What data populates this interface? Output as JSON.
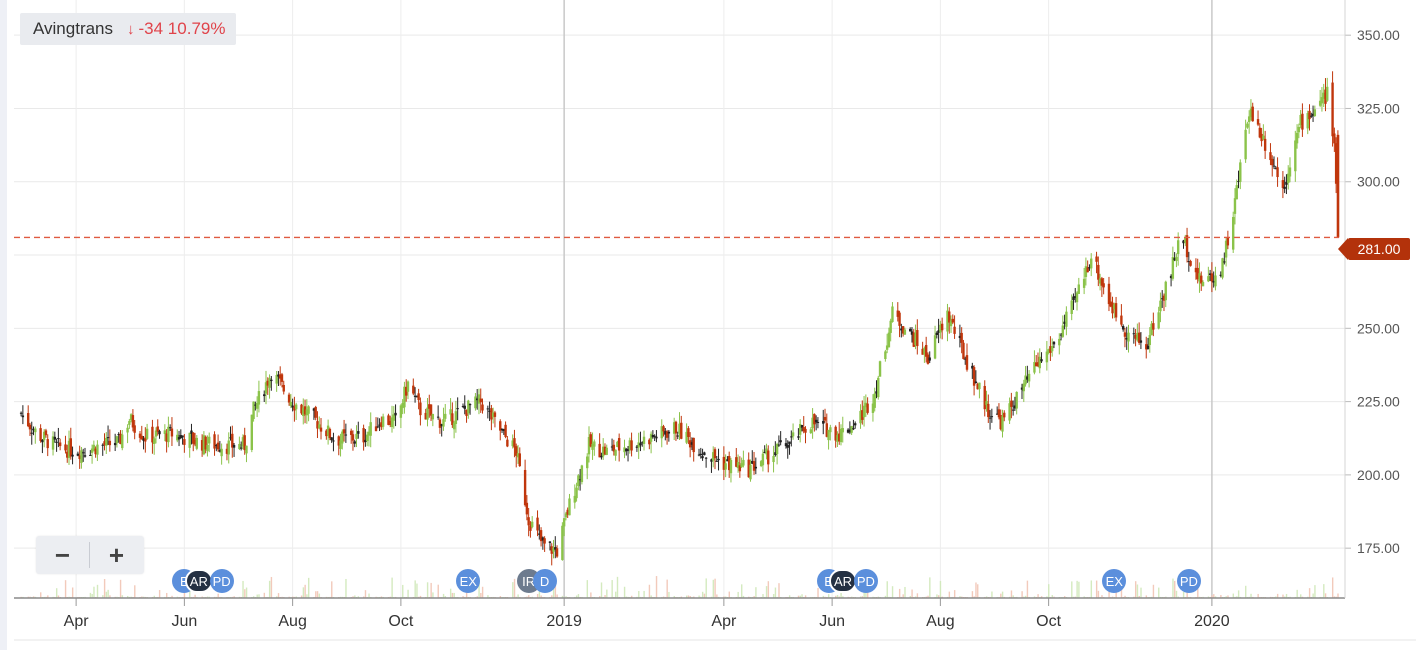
{
  "header": {
    "ticker": "Avingtrans",
    "arrow": "↓",
    "change": "-34 10.79%"
  },
  "zoom": {
    "minus": "−",
    "plus": "+"
  },
  "current_price_label": "281.00",
  "colors": {
    "up": "#8bc34a",
    "down": "#c0360c",
    "neutral": "#222222",
    "price_line": "#e05a40",
    "marker_blue": "#5b8fdc",
    "marker_dark": "#243042",
    "marker_gray": "#6d7b8e"
  },
  "events": [
    {
      "label": "E",
      "style": "blue",
      "date": "2018-06-01"
    },
    {
      "label": "AR",
      "style": "dark",
      "date": "2018-06-08"
    },
    {
      "label": "PD",
      "style": "blue",
      "date": "2018-06-22"
    },
    {
      "label": "EX",
      "style": "blue",
      "date": "2018-11-08"
    },
    {
      "label": "IR",
      "style": "gray",
      "date": "2018-12-12"
    },
    {
      "label": "D",
      "style": "blue",
      "date": "2018-12-21"
    },
    {
      "label": "E",
      "style": "blue",
      "date": "2019-05-30"
    },
    {
      "label": "AR",
      "style": "dark",
      "date": "2019-06-06"
    },
    {
      "label": "PD",
      "style": "blue",
      "date": "2019-06-20"
    },
    {
      "label": "EX",
      "style": "blue",
      "date": "2019-11-07"
    },
    {
      "label": "PD",
      "style": "blue",
      "date": "2019-12-19"
    }
  ],
  "chart_data": {
    "type": "candlestick",
    "title": "Avingtrans",
    "xlabel": "",
    "ylabel": "",
    "ylim": [
      158,
      362
    ],
    "y_ticks": [
      "350.00",
      "325.00",
      "300.00",
      "275.00",
      "250.00",
      "225.00",
      "200.00",
      "175.00"
    ],
    "x_ticks": [
      "Apr",
      "Jun",
      "Aug",
      "Oct",
      "2019",
      "Apr",
      "Jun",
      "Aug",
      "Oct",
      "2020"
    ],
    "current_price": 281,
    "grid": true,
    "price_path": [
      [
        "2018-03-01",
        221
      ],
      [
        "2018-03-10",
        214
      ],
      [
        "2018-03-20",
        210
      ],
      [
        "2018-04-01",
        208
      ],
      [
        "2018-04-15",
        210
      ],
      [
        "2018-04-25",
        211
      ],
      [
        "2018-05-01",
        219
      ],
      [
        "2018-05-10",
        213
      ],
      [
        "2018-05-25",
        214
      ],
      [
        "2018-06-10",
        211
      ],
      [
        "2018-06-25",
        210
      ],
      [
        "2018-07-05",
        210
      ],
      [
        "2018-07-10",
        222
      ],
      [
        "2018-07-20",
        235
      ],
      [
        "2018-08-01",
        225
      ],
      [
        "2018-08-15",
        218
      ],
      [
        "2018-08-25",
        212
      ],
      [
        "2018-09-10",
        213
      ],
      [
        "2018-09-20",
        219
      ],
      [
        "2018-09-28",
        218
      ],
      [
        "2018-10-05",
        231
      ],
      [
        "2018-10-12",
        222
      ],
      [
        "2018-10-25",
        218
      ],
      [
        "2018-11-05",
        222
      ],
      [
        "2018-11-15",
        225
      ],
      [
        "2018-11-25",
        216
      ],
      [
        "2018-12-05",
        208
      ],
      [
        "2018-12-12",
        185
      ],
      [
        "2018-12-20",
        176
      ],
      [
        "2018-12-28",
        174
      ],
      [
        "2019-01-05",
        192
      ],
      [
        "2019-01-15",
        210
      ],
      [
        "2019-01-25",
        208
      ],
      [
        "2019-02-10",
        211
      ],
      [
        "2019-02-25",
        214
      ],
      [
        "2019-03-05",
        216
      ],
      [
        "2019-03-20",
        208
      ],
      [
        "2019-04-01",
        204
      ],
      [
        "2019-04-15",
        202
      ],
      [
        "2019-04-25",
        206
      ],
      [
        "2019-05-10",
        212
      ],
      [
        "2019-05-20",
        218
      ],
      [
        "2019-06-05",
        214
      ],
      [
        "2019-06-15",
        218
      ],
      [
        "2019-06-25",
        228
      ],
      [
        "2019-07-05",
        255
      ],
      [
        "2019-07-15",
        248
      ],
      [
        "2019-07-25",
        240
      ],
      [
        "2019-08-05",
        255
      ],
      [
        "2019-08-15",
        240
      ],
      [
        "2019-08-28",
        222
      ],
      [
        "2019-09-05",
        218
      ],
      [
        "2019-09-15",
        228
      ],
      [
        "2019-09-25",
        238
      ],
      [
        "2019-10-05",
        245
      ],
      [
        "2019-10-15",
        258
      ],
      [
        "2019-10-25",
        275
      ],
      [
        "2019-11-05",
        258
      ],
      [
        "2019-11-15",
        248
      ],
      [
        "2019-11-25",
        244
      ],
      [
        "2019-12-05",
        262
      ],
      [
        "2019-12-15",
        282
      ],
      [
        "2019-12-25",
        266
      ],
      [
        "2020-01-05",
        268
      ],
      [
        "2020-01-12",
        285
      ],
      [
        "2020-01-22",
        325
      ],
      [
        "2020-02-01",
        312
      ],
      [
        "2020-02-10",
        298
      ],
      [
        "2020-02-20",
        320
      ],
      [
        "2020-03-01",
        326
      ],
      [
        "2020-03-06",
        330
      ],
      [
        "2020-03-10",
        312
      ],
      [
        "2020-03-12",
        281
      ]
    ]
  }
}
